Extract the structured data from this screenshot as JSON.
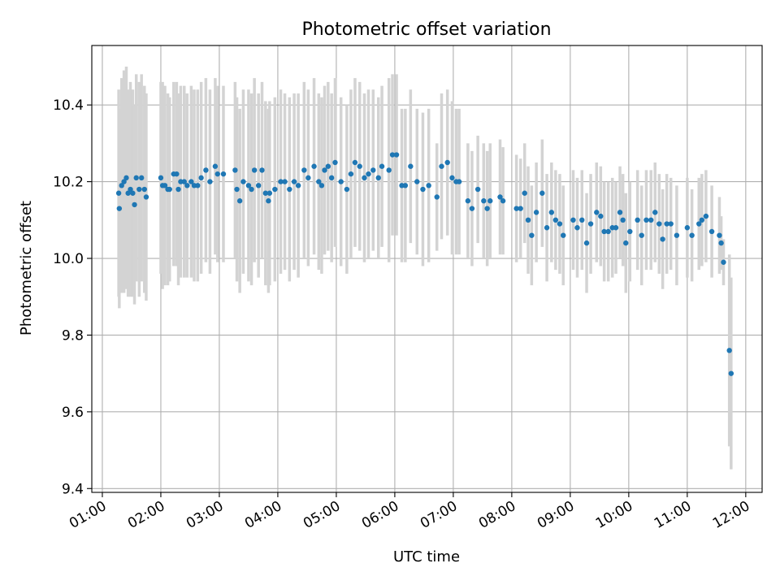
{
  "chart_data": {
    "type": "scatter",
    "title": "Photometric offset variation",
    "xlabel": "UTC time",
    "ylabel": "Photometric offset",
    "xlim": [
      0.82,
      12.28
    ],
    "ylim": [
      9.39,
      10.555
    ],
    "x_ticks": [
      1,
      2,
      3,
      4,
      5,
      6,
      7,
      8,
      9,
      10,
      11,
      12
    ],
    "x_tick_labels": [
      "01:00",
      "02:00",
      "03:00",
      "04:00",
      "05:00",
      "06:00",
      "07:00",
      "08:00",
      "09:00",
      "10:00",
      "11:00",
      "12:00"
    ],
    "y_ticks": [
      9.4,
      9.6,
      9.8,
      10.0,
      10.2,
      10.4
    ],
    "y_tick_labels": [
      "9.4",
      "9.6",
      "9.8",
      "10.0",
      "10.2",
      "10.4"
    ],
    "grid": true,
    "marker_color": "#1f77b4",
    "errorbar_color": "#d3d3d3",
    "series": [
      {
        "name": "photometric offset",
        "points": [
          [
            1.28,
            10.17,
            0.27
          ],
          [
            1.29,
            10.13,
            0.26
          ],
          [
            1.33,
            10.19,
            0.28
          ],
          [
            1.37,
            10.2,
            0.29
          ],
          [
            1.41,
            10.21,
            0.29
          ],
          [
            1.44,
            10.17,
            0.27
          ],
          [
            1.48,
            10.18,
            0.28
          ],
          [
            1.52,
            10.17,
            0.27
          ],
          [
            1.55,
            10.14,
            0.26
          ],
          [
            1.58,
            10.21,
            0.27
          ],
          [
            1.63,
            10.18,
            0.28
          ],
          [
            1.67,
            10.21,
            0.27
          ],
          [
            1.72,
            10.18,
            0.27
          ],
          [
            1.75,
            10.16,
            0.27
          ],
          [
            2.0,
            10.21,
            0.25
          ],
          [
            2.03,
            10.19,
            0.27
          ],
          [
            2.07,
            10.19,
            0.26
          ],
          [
            2.12,
            10.18,
            0.25
          ],
          [
            2.15,
            10.18,
            0.24
          ],
          [
            2.22,
            10.22,
            0.24
          ],
          [
            2.27,
            10.22,
            0.24
          ],
          [
            2.3,
            10.18,
            0.25
          ],
          [
            2.34,
            10.2,
            0.25
          ],
          [
            2.4,
            10.2,
            0.25
          ],
          [
            2.45,
            10.19,
            0.24
          ],
          [
            2.52,
            10.2,
            0.25
          ],
          [
            2.57,
            10.19,
            0.25
          ],
          [
            2.63,
            10.19,
            0.25
          ],
          [
            2.69,
            10.21,
            0.25
          ],
          [
            2.77,
            10.23,
            0.24
          ],
          [
            2.84,
            10.2,
            0.24
          ],
          [
            2.93,
            10.24,
            0.23
          ],
          [
            2.97,
            10.22,
            0.23
          ],
          [
            3.07,
            10.22,
            0.23
          ],
          [
            3.27,
            10.23,
            0.23
          ],
          [
            3.3,
            10.18,
            0.24
          ],
          [
            3.35,
            10.15,
            0.24
          ],
          [
            3.41,
            10.2,
            0.24
          ],
          [
            3.5,
            10.19,
            0.25
          ],
          [
            3.55,
            10.18,
            0.25
          ],
          [
            3.6,
            10.23,
            0.24
          ],
          [
            3.67,
            10.19,
            0.24
          ],
          [
            3.73,
            10.23,
            0.23
          ],
          [
            3.79,
            10.17,
            0.24
          ],
          [
            3.84,
            10.15,
            0.24
          ],
          [
            3.86,
            10.17,
            0.24
          ],
          [
            3.95,
            10.18,
            0.24
          ],
          [
            4.05,
            10.2,
            0.24
          ],
          [
            4.12,
            10.2,
            0.23
          ],
          [
            4.2,
            10.18,
            0.24
          ],
          [
            4.28,
            10.2,
            0.23
          ],
          [
            4.35,
            10.19,
            0.24
          ],
          [
            4.45,
            10.23,
            0.23
          ],
          [
            4.52,
            10.21,
            0.23
          ],
          [
            4.62,
            10.24,
            0.23
          ],
          [
            4.7,
            10.2,
            0.23
          ],
          [
            4.75,
            10.19,
            0.23
          ],
          [
            4.8,
            10.23,
            0.22
          ],
          [
            4.86,
            10.24,
            0.22
          ],
          [
            4.92,
            10.21,
            0.22
          ],
          [
            4.98,
            10.25,
            0.22
          ],
          [
            5.08,
            10.2,
            0.22
          ],
          [
            5.18,
            10.18,
            0.22
          ],
          [
            5.25,
            10.22,
            0.22
          ],
          [
            5.32,
            10.25,
            0.22
          ],
          [
            5.4,
            10.24,
            0.22
          ],
          [
            5.48,
            10.21,
            0.22
          ],
          [
            5.55,
            10.22,
            0.22
          ],
          [
            5.63,
            10.23,
            0.21
          ],
          [
            5.72,
            10.21,
            0.21
          ],
          [
            5.78,
            10.24,
            0.21
          ],
          [
            5.9,
            10.23,
            0.24
          ],
          [
            5.96,
            10.27,
            0.21
          ],
          [
            6.03,
            10.27,
            0.21
          ],
          [
            6.12,
            10.19,
            0.2
          ],
          [
            6.18,
            10.19,
            0.2
          ],
          [
            6.27,
            10.24,
            0.2
          ],
          [
            6.38,
            10.2,
            0.19
          ],
          [
            6.48,
            10.18,
            0.2
          ],
          [
            6.58,
            10.19,
            0.2
          ],
          [
            6.72,
            10.16,
            0.14
          ],
          [
            6.8,
            10.24,
            0.19
          ],
          [
            6.9,
            10.25,
            0.19
          ],
          [
            6.98,
            10.21,
            0.2
          ],
          [
            7.05,
            10.2,
            0.19
          ],
          [
            7.1,
            10.2,
            0.19
          ],
          [
            7.25,
            10.15,
            0.15
          ],
          [
            7.32,
            10.13,
            0.15
          ],
          [
            7.42,
            10.18,
            0.14
          ],
          [
            7.52,
            10.15,
            0.15
          ],
          [
            7.58,
            10.13,
            0.15
          ],
          [
            7.63,
            10.15,
            0.15
          ],
          [
            7.8,
            10.16,
            0.15
          ],
          [
            7.85,
            10.15,
            0.14
          ],
          [
            8.08,
            10.13,
            0.14
          ],
          [
            8.15,
            10.13,
            0.13
          ],
          [
            8.22,
            10.17,
            0.13
          ],
          [
            8.28,
            10.1,
            0.14
          ],
          [
            8.34,
            10.06,
            0.13
          ],
          [
            8.42,
            10.12,
            0.13
          ],
          [
            8.52,
            10.17,
            0.14
          ],
          [
            8.6,
            10.08,
            0.14
          ],
          [
            8.68,
            10.12,
            0.13
          ],
          [
            8.75,
            10.1,
            0.13
          ],
          [
            8.82,
            10.09,
            0.13
          ],
          [
            8.88,
            10.06,
            0.13
          ],
          [
            9.05,
            10.1,
            0.13
          ],
          [
            9.12,
            10.08,
            0.13
          ],
          [
            9.2,
            10.1,
            0.13
          ],
          [
            9.28,
            10.04,
            0.13
          ],
          [
            9.35,
            10.09,
            0.13
          ],
          [
            9.45,
            10.12,
            0.13
          ],
          [
            9.52,
            10.11,
            0.13
          ],
          [
            9.58,
            10.07,
            0.13
          ],
          [
            9.65,
            10.07,
            0.13
          ],
          [
            9.72,
            10.08,
            0.13
          ],
          [
            9.78,
            10.08,
            0.12
          ],
          [
            9.85,
            10.12,
            0.12
          ],
          [
            9.9,
            10.1,
            0.12
          ],
          [
            9.95,
            10.04,
            0.13
          ],
          [
            10.02,
            10.07,
            0.13
          ],
          [
            10.15,
            10.1,
            0.13
          ],
          [
            10.22,
            10.06,
            0.13
          ],
          [
            10.3,
            10.1,
            0.13
          ],
          [
            10.38,
            10.1,
            0.13
          ],
          [
            10.45,
            10.12,
            0.13
          ],
          [
            10.52,
            10.09,
            0.13
          ],
          [
            10.58,
            10.05,
            0.13
          ],
          [
            10.65,
            10.09,
            0.13
          ],
          [
            10.72,
            10.09,
            0.12
          ],
          [
            10.82,
            10.06,
            0.13
          ],
          [
            11.0,
            10.08,
            0.13
          ],
          [
            11.08,
            10.06,
            0.12
          ],
          [
            11.2,
            10.09,
            0.12
          ],
          [
            11.25,
            10.1,
            0.12
          ],
          [
            11.32,
            10.11,
            0.12
          ],
          [
            11.42,
            10.07,
            0.12
          ],
          [
            11.55,
            10.06,
            0.1
          ],
          [
            11.58,
            10.04,
            0.07
          ],
          [
            11.62,
            9.99,
            0.06
          ],
          [
            11.72,
            9.76,
            0.25
          ],
          [
            11.75,
            9.7,
            0.25
          ]
        ]
      }
    ]
  }
}
